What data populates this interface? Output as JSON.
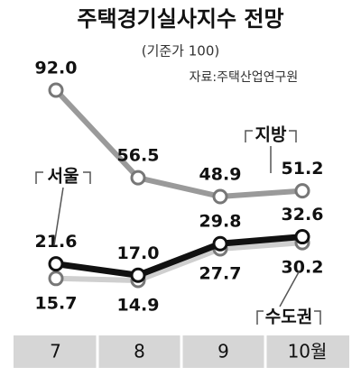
{
  "chart_data": {
    "type": "line",
    "title": "주택경기실사지수 전망",
    "subtitle": "(기준가 100)",
    "source": "자료:주택산업연구원",
    "categories": [
      "7",
      "8",
      "9",
      "10월"
    ],
    "series": [
      {
        "name": "지방",
        "color": "#9a9a9a",
        "values": [
          92.0,
          56.5,
          48.9,
          51.2
        ],
        "value_labels": [
          "92.0",
          "56.5",
          "48.9",
          "51.2"
        ]
      },
      {
        "name": "서울",
        "color": "#111111",
        "values": [
          21.6,
          17.0,
          29.8,
          32.6
        ],
        "value_labels": [
          "21.6",
          "17.0",
          "29.8",
          "32.6"
        ]
      },
      {
        "name": "수도권",
        "color": "#cfcfcf",
        "values": [
          15.7,
          14.9,
          27.7,
          30.2
        ],
        "value_labels": [
          "15.7",
          "14.9",
          "27.7",
          "30.2"
        ]
      }
    ]
  }
}
